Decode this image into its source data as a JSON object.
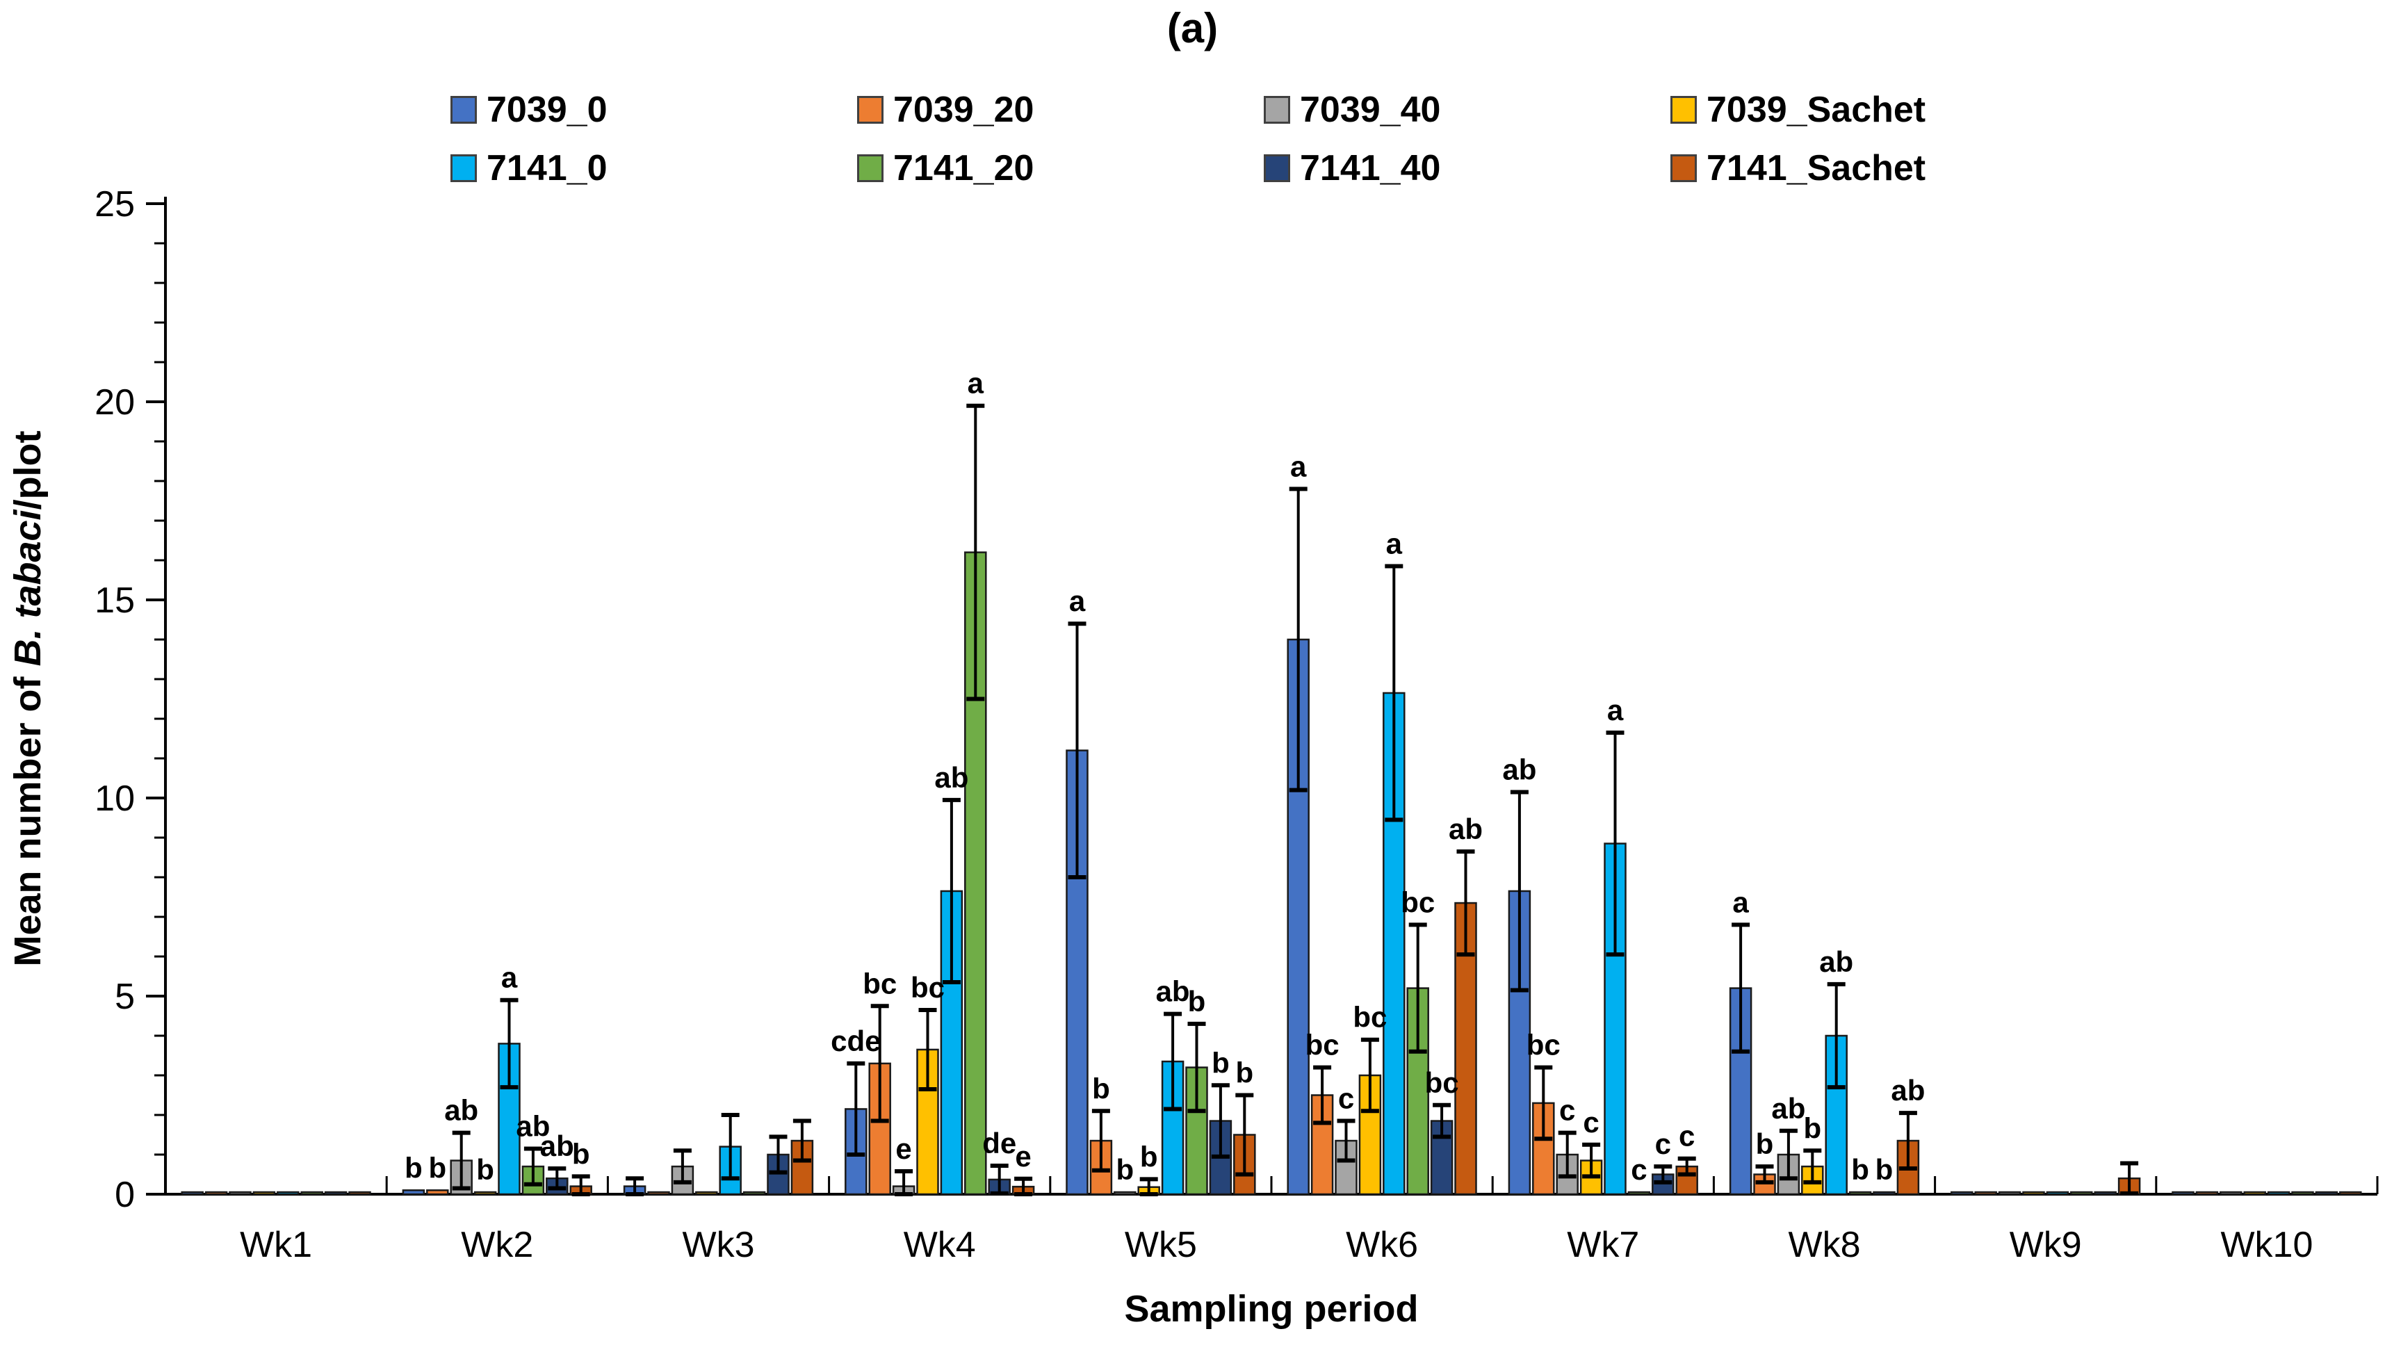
{
  "title": "(a)",
  "axes": {
    "y_label_prefix": "Mean number of ",
    "y_label_italic": "B. tabaci",
    "y_label_suffix": "/plot",
    "x_label": "Sampling period",
    "y_ticks": [
      0,
      5,
      10,
      15,
      20,
      25
    ],
    "y_minor_step": 1
  },
  "chart_data": {
    "type": "bar",
    "title": "(a)",
    "xlabel": "Sampling period",
    "ylabel": "Mean number of B. tabaci/plot",
    "ylim": [
      0,
      25
    ],
    "grid": false,
    "legend_position": "top",
    "error_bars": true,
    "categories": [
      "Wk1",
      "Wk2",
      "Wk3",
      "Wk4",
      "Wk5",
      "Wk6",
      "Wk7",
      "Wk8",
      "Wk9",
      "Wk10"
    ],
    "series": [
      {
        "name": "7039_0",
        "color": "#4472C4",
        "values": [
          0.05,
          0.1,
          0.2,
          2.15,
          11.2,
          14.0,
          7.65,
          5.2,
          0.05,
          0.05
        ],
        "errors": [
          0,
          0,
          0.2,
          1.15,
          3.2,
          3.8,
          2.5,
          1.6,
          0,
          0
        ],
        "letters": [
          "",
          "b",
          "",
          "cde",
          "a",
          "a",
          "ab",
          "a",
          "",
          ""
        ]
      },
      {
        "name": "7039_20",
        "color": "#ED7D31",
        "values": [
          0.05,
          0.1,
          0.05,
          3.3,
          1.35,
          2.5,
          2.3,
          0.5,
          0.05,
          0.05
        ],
        "errors": [
          0,
          0,
          0,
          1.45,
          0.75,
          0.7,
          0.9,
          0.2,
          0,
          0
        ],
        "letters": [
          "",
          "b",
          "",
          "bc",
          "b",
          "bc",
          "bc",
          "b",
          "",
          ""
        ]
      },
      {
        "name": "7039_40",
        "color": "#A5A5A5",
        "values": [
          0.05,
          0.85,
          0.7,
          0.2,
          0.05,
          1.35,
          1.0,
          1.0,
          0.05,
          0.05
        ],
        "errors": [
          0,
          0.7,
          0.4,
          0.38,
          0,
          0.5,
          0.55,
          0.6,
          0,
          0
        ],
        "letters": [
          "",
          "ab",
          "",
          "e",
          "b",
          "c",
          "c",
          "ab",
          "",
          ""
        ]
      },
      {
        "name": "7039_Sachet",
        "color": "#FFC000",
        "values": [
          0.05,
          0.05,
          0.05,
          3.65,
          0.18,
          3.0,
          0.85,
          0.7,
          0.05,
          0.05
        ],
        "errors": [
          0,
          0,
          0,
          1.0,
          0.2,
          0.9,
          0.4,
          0.4,
          0,
          0
        ],
        "letters": [
          "",
          "b",
          "",
          "bc",
          "b",
          "bc",
          "c",
          "b",
          "",
          ""
        ]
      },
      {
        "name": "7141_0",
        "color": "#00B0F0",
        "values": [
          0.05,
          3.8,
          1.2,
          7.65,
          3.35,
          12.65,
          8.85,
          4.0,
          0.05,
          0.05
        ],
        "errors": [
          0,
          1.1,
          0.8,
          2.3,
          1.2,
          3.2,
          2.8,
          1.3,
          0,
          0
        ],
        "letters": [
          "",
          "a",
          "",
          "ab",
          "ab",
          "a",
          "a",
          "ab",
          "",
          ""
        ]
      },
      {
        "name": "7141_20",
        "color": "#70AD47",
        "values": [
          0.05,
          0.7,
          0.05,
          16.2,
          3.2,
          5.2,
          0.05,
          0.05,
          0.05,
          0.05
        ],
        "errors": [
          0,
          0.45,
          0,
          3.7,
          1.1,
          1.6,
          0,
          0,
          0,
          0
        ],
        "letters": [
          "",
          "ab",
          "",
          "a",
          "b",
          "bc",
          "c",
          "b",
          "",
          ""
        ]
      },
      {
        "name": "7141_40",
        "color": "#264478",
        "values": [
          0.05,
          0.4,
          1.0,
          0.37,
          1.85,
          1.85,
          0.5,
          0.05,
          0.05,
          0.05
        ],
        "errors": [
          0,
          0.25,
          0.45,
          0.35,
          0.9,
          0.4,
          0.2,
          0,
          0,
          0
        ],
        "letters": [
          "",
          "ab",
          "",
          "de",
          "b",
          "bc",
          "c",
          "b",
          "",
          ""
        ]
      },
      {
        "name": "7141_Sachet",
        "color": "#C55A11",
        "values": [
          0.05,
          0.2,
          1.35,
          0.19,
          1.5,
          7.35,
          0.7,
          1.35,
          0.4,
          0.05
        ],
        "errors": [
          0,
          0.25,
          0.5,
          0.2,
          1.0,
          1.3,
          0.2,
          0.7,
          0.38,
          0
        ],
        "letters": [
          "",
          "b",
          "",
          "e",
          "b",
          "ab",
          "c",
          "ab",
          "",
          ""
        ]
      }
    ]
  }
}
